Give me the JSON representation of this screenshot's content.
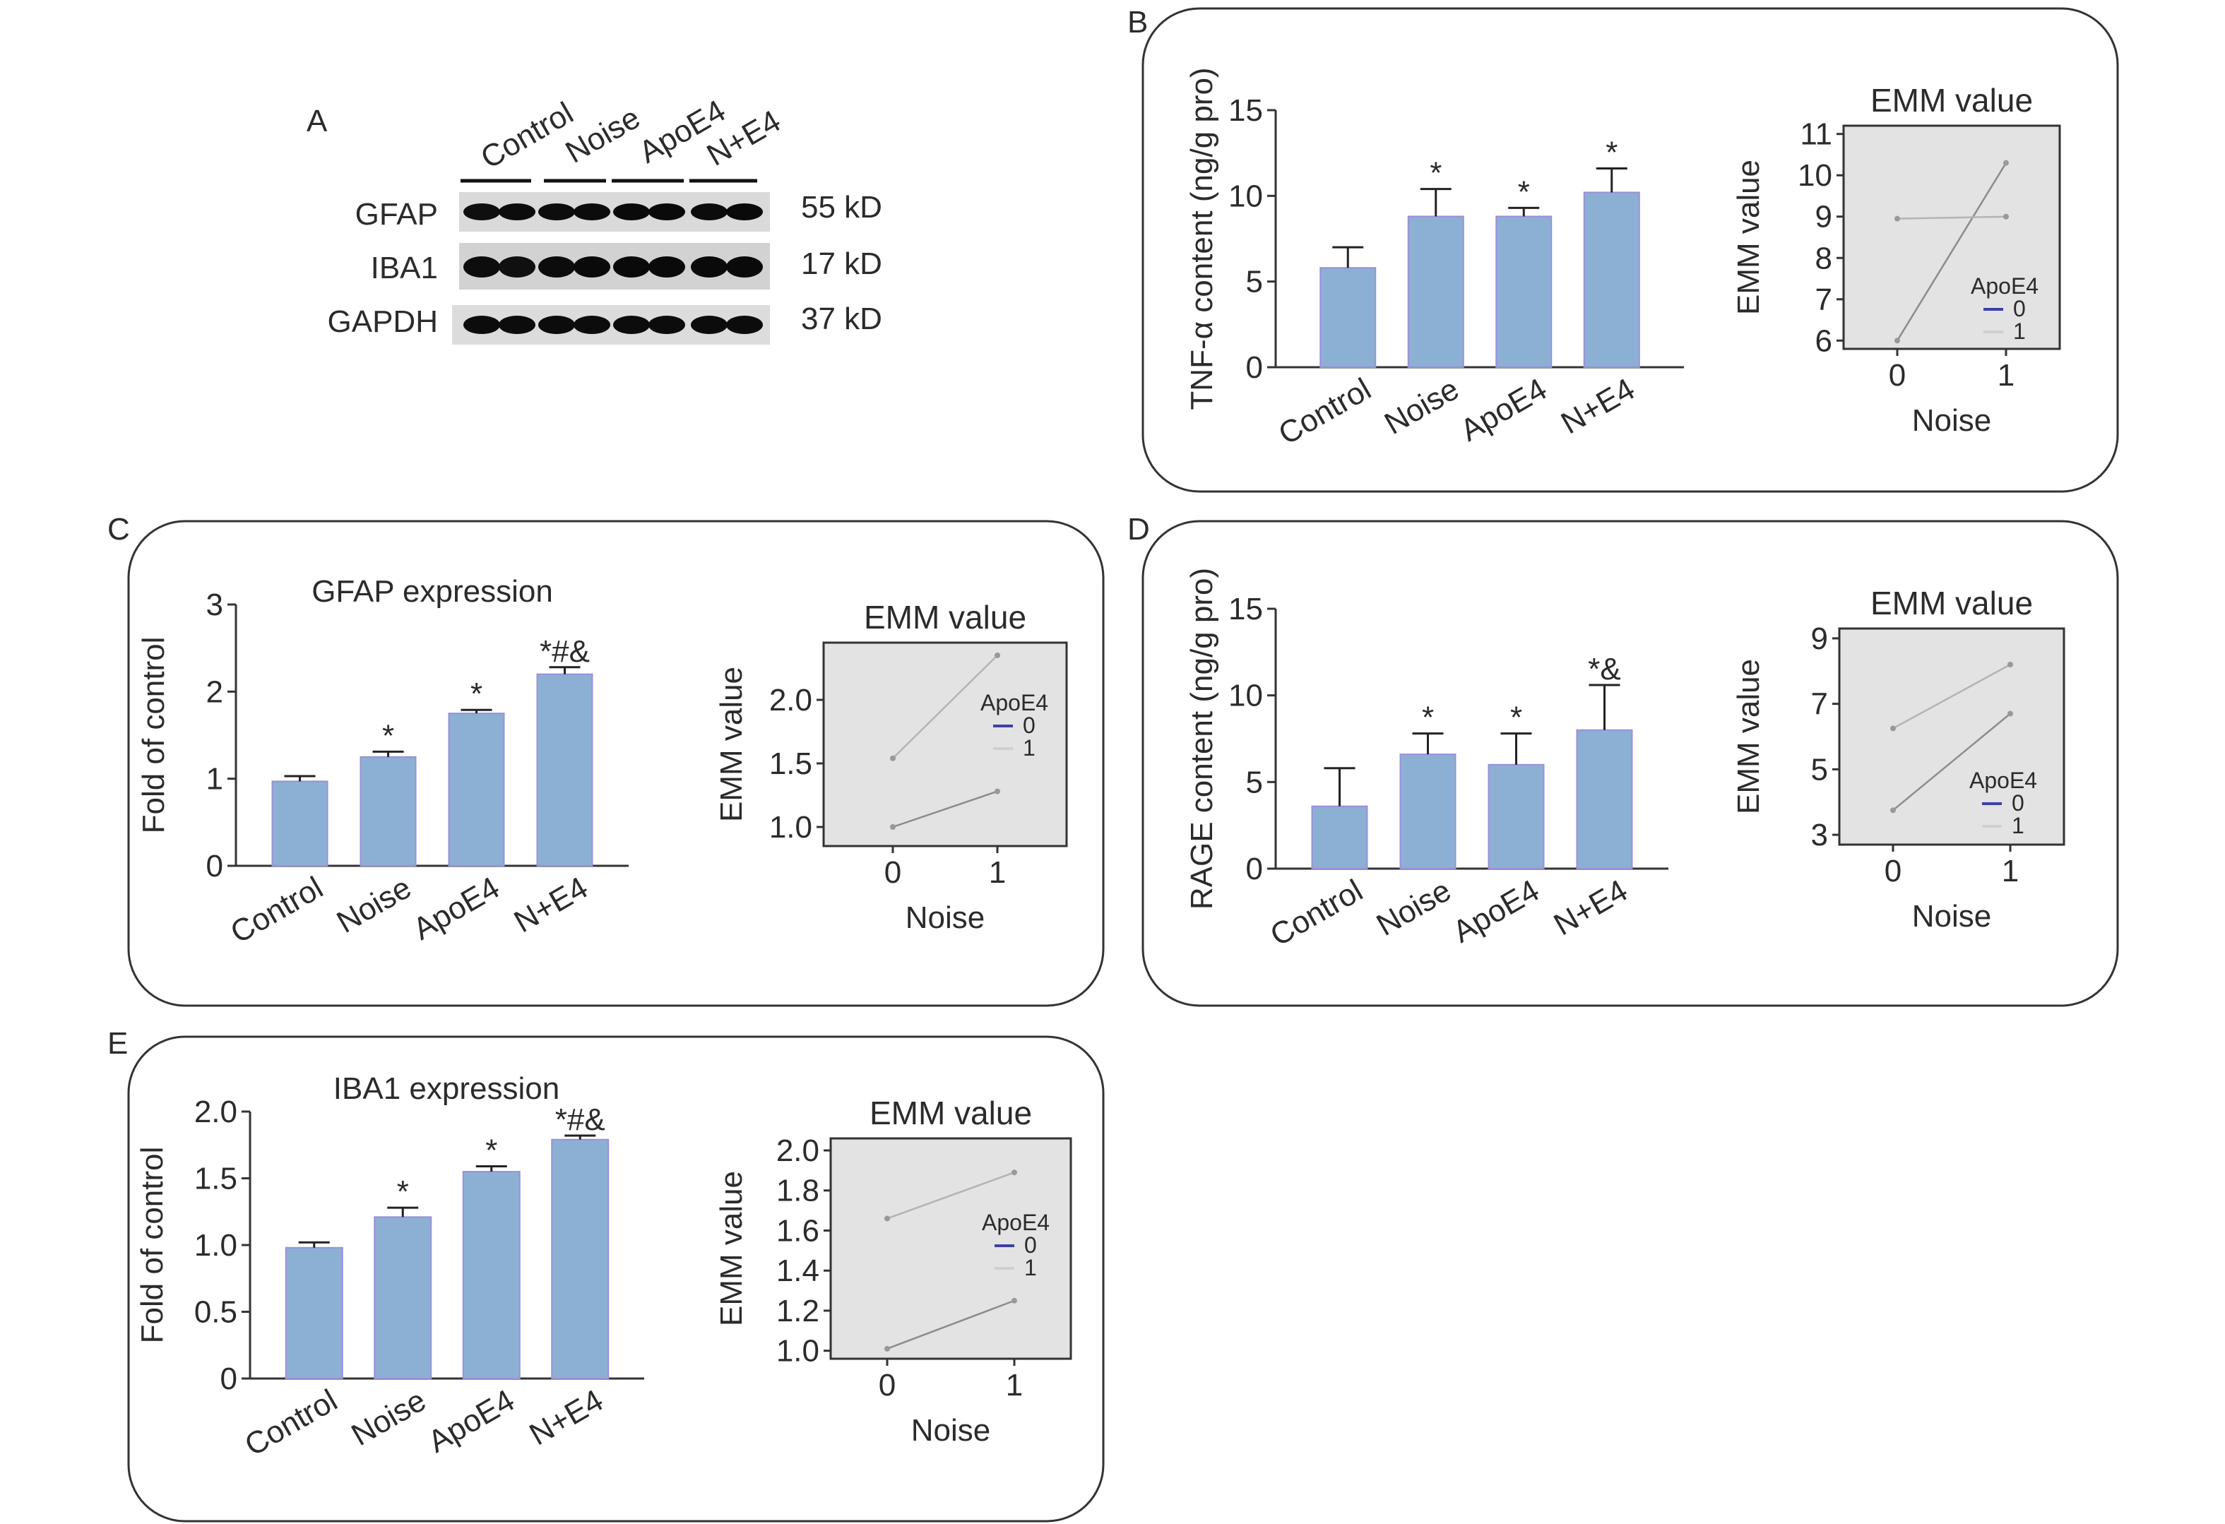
{
  "colors": {
    "bar_fill": "#8cb0d3",
    "bar_stroke": "#9a8fd8",
    "axis": "#333333",
    "emm_bg": "#e3e3e3",
    "emm_line0": "#8c8c8c",
    "emm_line1": "#b4b4b4",
    "legend_swatch0": "#3f3fa8",
    "legend_swatch1": "#d0d0d0",
    "panel_border": "#333333"
  },
  "blot": {
    "panel_letter": "A",
    "lanes": [
      "Control",
      "Noise",
      "ApoE4",
      "N+E4"
    ],
    "rows": [
      {
        "protein": "GFAP",
        "size": "55 kD"
      },
      {
        "protein": "IBA1",
        "size": "17 kD"
      },
      {
        "protein": "GAPDH",
        "size": "37 kD"
      }
    ]
  },
  "chart_data": [
    {
      "panel": "B",
      "type": "bar",
      "title": "",
      "categories": [
        "Control",
        "Noise",
        "ApoE4",
        "N+E4"
      ],
      "values": [
        5.8,
        8.8,
        8.8,
        10.2
      ],
      "errors": [
        1.2,
        1.6,
        0.5,
        1.4
      ],
      "significance": [
        "",
        "*",
        "*",
        "*"
      ],
      "ylabel": "TNF-α content (ng/g pro)",
      "xlabel": "",
      "ylim": [
        0,
        15
      ],
      "yticks": [
        "0",
        "5",
        "10",
        "15"
      ],
      "grid": false
    },
    {
      "panel": "B",
      "type": "line",
      "title": "EMM value",
      "xlabel": "Noise",
      "ylabel": "EMM value",
      "x": [
        0,
        1
      ],
      "xticks": [
        "0",
        "1"
      ],
      "ylim": [
        5.8,
        11.2
      ],
      "yticks": [
        "6",
        "7",
        "8",
        "9",
        "10",
        "11"
      ],
      "legend_title": "ApoE4",
      "legend_position": "bottom-right",
      "series": [
        {
          "name": "0",
          "values": [
            6.0,
            10.3
          ]
        },
        {
          "name": "1",
          "values": [
            8.95,
            9.0
          ]
        }
      ]
    },
    {
      "panel": "C",
      "type": "bar",
      "title": "GFAP expression",
      "categories": [
        "Control",
        "Noise",
        "ApoE4",
        "N+E4"
      ],
      "values": [
        0.97,
        1.25,
        1.75,
        2.2
      ],
      "errors": [
        0.06,
        0.06,
        0.04,
        0.08
      ],
      "significance": [
        "",
        "*",
        "*",
        "*#&"
      ],
      "ylabel": "Fold of control",
      "xlabel": "",
      "ylim": [
        0,
        3
      ],
      "yticks": [
        "0",
        "1",
        "2",
        "3"
      ],
      "grid": false
    },
    {
      "panel": "C",
      "type": "line",
      "title": "EMM value",
      "xlabel": "Noise",
      "ylabel": "EMM value",
      "x": [
        0,
        1
      ],
      "xticks": [
        "0",
        "1"
      ],
      "ylim": [
        0.85,
        2.45
      ],
      "yticks": [
        "1.0",
        "1.5",
        "2.0"
      ],
      "legend_title": "ApoE4",
      "legend_position": "top-right",
      "series": [
        {
          "name": "0",
          "values": [
            1.0,
            1.28
          ]
        },
        {
          "name": "1",
          "values": [
            1.54,
            2.35
          ]
        }
      ]
    },
    {
      "panel": "D",
      "type": "bar",
      "title": "",
      "categories": [
        "Control",
        "Noise",
        "ApoE4",
        "N+E4"
      ],
      "values": [
        3.6,
        6.6,
        6.0,
        8.0
      ],
      "errors": [
        2.2,
        1.2,
        1.8,
        2.6
      ],
      "significance": [
        "",
        "*",
        "*",
        "*&"
      ],
      "ylabel": "RAGE content (ng/g pro)",
      "xlabel": "",
      "ylim": [
        0,
        15
      ],
      "yticks": [
        "0",
        "5",
        "10",
        "15"
      ],
      "grid": false
    },
    {
      "panel": "D",
      "type": "line",
      "title": "EMM value",
      "xlabel": "Noise",
      "ylabel": "EMM value",
      "x": [
        0,
        1
      ],
      "xticks": [
        "0",
        "1"
      ],
      "ylim": [
        2.7,
        9.3
      ],
      "yticks": [
        "3",
        "5",
        "7",
        "9"
      ],
      "legend_title": "ApoE4",
      "legend_position": "bottom-right",
      "series": [
        {
          "name": "0",
          "values": [
            3.75,
            6.7
          ]
        },
        {
          "name": "1",
          "values": [
            6.25,
            8.2
          ]
        }
      ]
    },
    {
      "panel": "E",
      "type": "bar",
      "title": "IBA1 expression",
      "categories": [
        "Control",
        "Noise",
        "ApoE4",
        "N+E4"
      ],
      "values": [
        0.98,
        1.21,
        1.55,
        1.79
      ],
      "errors": [
        0.04,
        0.07,
        0.04,
        0.03
      ],
      "significance": [
        "",
        "*",
        "*",
        "*#&"
      ],
      "ylabel": "Fold of control",
      "xlabel": "",
      "ylim": [
        0,
        2.0
      ],
      "yticks": [
        "0",
        "0.5",
        "1.0",
        "1.5",
        "2.0"
      ],
      "grid": false
    },
    {
      "panel": "E",
      "type": "line",
      "title": "EMM value",
      "xlabel": "Noise",
      "ylabel": "EMM value",
      "x": [
        0,
        1
      ],
      "xticks": [
        "0",
        "1"
      ],
      "ylim": [
        0.96,
        2.06
      ],
      "yticks": [
        "1.0",
        "1.2",
        "1.4",
        "1.6",
        "1.8",
        "2.0"
      ],
      "legend_title": "ApoE4",
      "legend_position": "top-right",
      "series": [
        {
          "name": "0",
          "values": [
            1.01,
            1.25
          ]
        },
        {
          "name": "1",
          "values": [
            1.66,
            1.89
          ]
        }
      ]
    }
  ]
}
